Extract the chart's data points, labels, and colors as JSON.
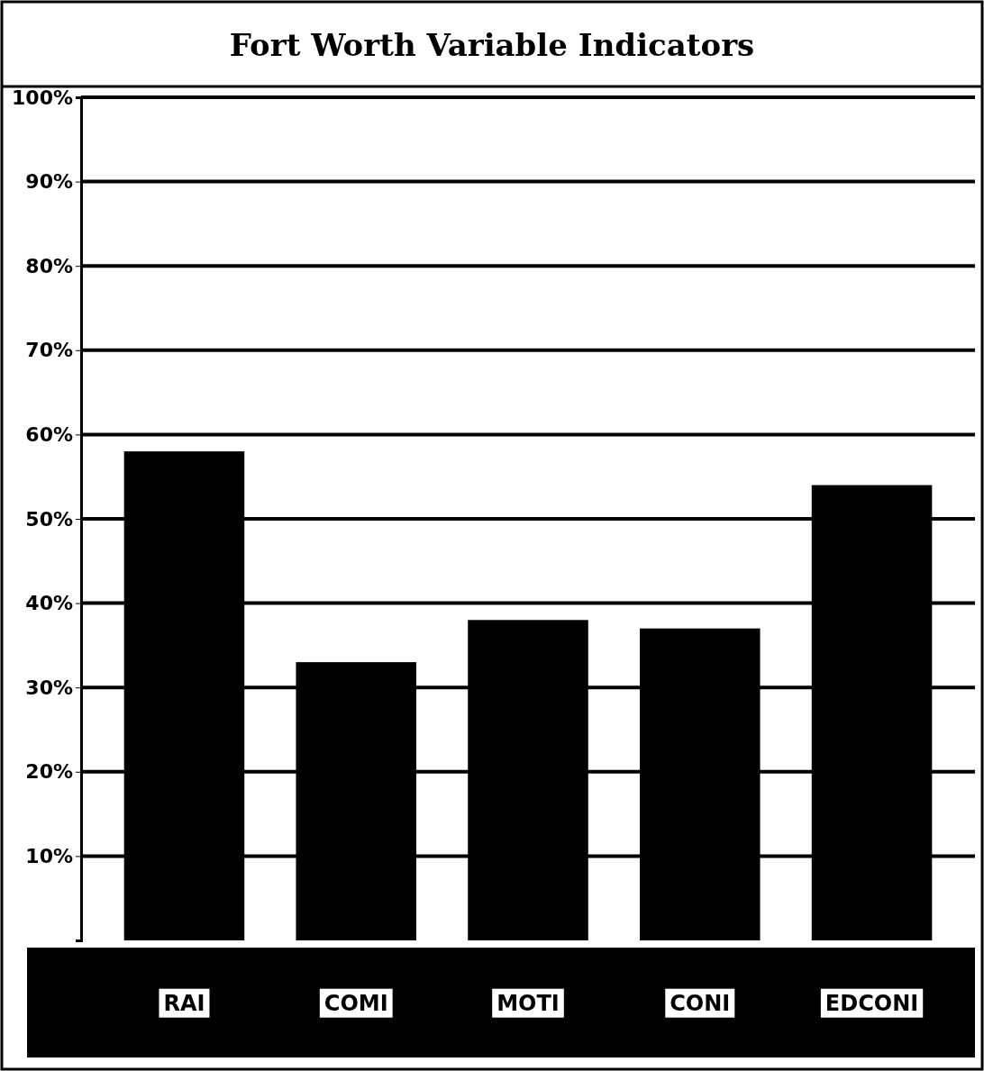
{
  "chart_data": {
    "type": "bar",
    "title": "Fort Worth Variable Indicators",
    "categories": [
      "RAI",
      "COMI",
      "MOTI",
      "CONI",
      "EDCONI"
    ],
    "values": [
      58,
      33,
      38,
      37,
      54
    ],
    "color": "#000000",
    "ylim": [
      0,
      100
    ],
    "yticks": [
      {
        "value": 10,
        "label": "10%"
      },
      {
        "value": 20,
        "label": "20%"
      },
      {
        "value": 30,
        "label": "30%"
      },
      {
        "value": 40,
        "label": "40%"
      },
      {
        "value": 50,
        "label": "50%"
      },
      {
        "value": 60,
        "label": "60%"
      },
      {
        "value": 70,
        "label": "70%"
      },
      {
        "value": 80,
        "label": "80%"
      },
      {
        "value": 90,
        "label": "90%"
      },
      {
        "value": 100,
        "label": "100%"
      }
    ],
    "grid": "y"
  }
}
